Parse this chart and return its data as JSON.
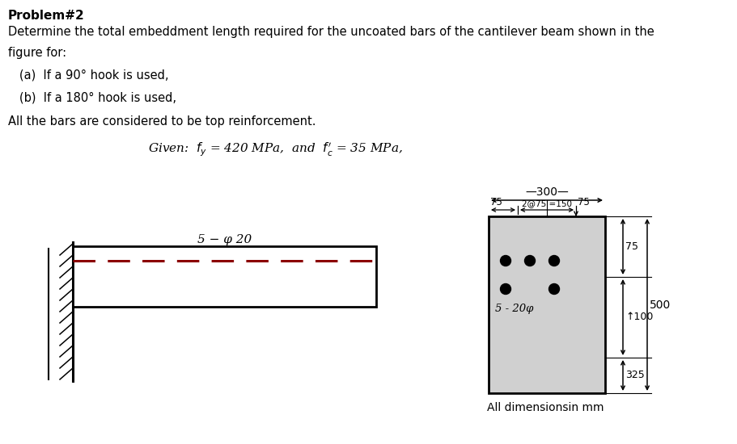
{
  "bg_color": "#ffffff",
  "title_text": "Problem#2",
  "line1": "Determine the total embeddment length required for the uncoated bars of the cantilever beam shown in the",
  "line2": "figure for:",
  "item_a": "   (a)  If a 90° hook is used,",
  "item_b": "   (b)  If a 180° hook is used,",
  "line3": "All the bars are considered to be top reinforcement.",
  "label_beam": "5 − φ 20",
  "label_5_20phi": "5 - 20φ",
  "all_dims": "All dimensionsin mm"
}
